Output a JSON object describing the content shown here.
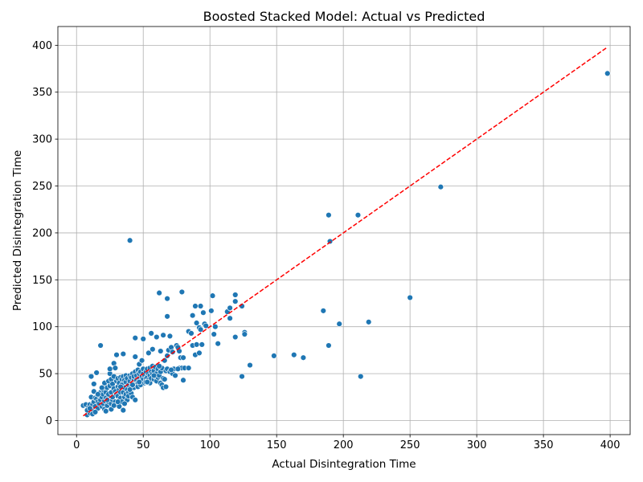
{
  "chart_data": {
    "type": "scatter",
    "title": "Boosted Stacked Model: Actual vs Predicted",
    "xlabel": "Actual Disintegration Time",
    "ylabel": "Predicted Disintegration Time",
    "xlim": [
      -14,
      415
    ],
    "ylim": [
      -15,
      420
    ],
    "xticks": [
      0,
      50,
      100,
      150,
      200,
      250,
      300,
      350,
      400
    ],
    "yticks": [
      0,
      50,
      100,
      150,
      200,
      250,
      300,
      350,
      400
    ],
    "grid": true,
    "legend": null,
    "colors": {
      "points": "#1f77b4",
      "point_edge": "#ffffff",
      "reference_line": "#ff0000",
      "grid": "#b0b0b0",
      "frame": "#000000"
    },
    "reference_line": {
      "style": "dashed",
      "x": [
        5,
        398
      ],
      "y": [
        5,
        398
      ]
    },
    "series": [
      {
        "x": [
          5,
          7,
          8,
          9,
          9,
          10,
          10,
          11,
          11,
          11,
          12,
          12,
          13,
          13,
          13,
          14,
          14,
          15,
          15,
          16,
          16,
          17,
          17,
          18,
          18,
          18,
          19,
          19,
          20,
          20,
          20,
          21,
          21,
          21,
          22,
          22,
          22,
          23,
          23,
          24,
          24,
          24,
          25,
          25,
          25,
          26,
          26,
          26,
          27,
          27,
          27,
          28,
          28,
          28,
          29,
          29,
          29,
          30,
          30,
          30,
          31,
          31,
          31,
          32,
          32,
          32,
          33,
          33,
          33,
          34,
          34,
          34,
          35,
          35,
          35,
          35,
          36,
          36,
          36,
          37,
          37,
          37,
          38,
          38,
          38,
          39,
          39,
          39,
          40,
          40,
          40,
          41,
          41,
          41,
          42,
          42,
          42,
          43,
          43,
          43,
          44,
          44,
          44,
          44,
          45,
          45,
          45,
          46,
          46,
          46,
          47,
          47,
          47,
          48,
          48,
          48,
          49,
          49,
          50,
          50,
          50,
          50,
          51,
          51,
          52,
          52,
          52,
          53,
          53,
          54,
          54,
          54,
          55,
          55,
          55,
          56,
          56,
          56,
          57,
          57,
          57,
          58,
          58,
          59,
          59,
          60,
          60,
          60,
          61,
          61,
          62,
          62,
          63,
          63,
          63,
          64,
          64,
          65,
          65,
          65,
          66,
          66,
          67,
          68,
          68,
          68,
          68,
          69,
          70,
          70,
          71,
          72,
          72,
          73,
          74,
          75,
          76,
          77,
          77,
          78,
          79,
          79,
          80,
          80,
          81,
          84,
          84,
          86,
          87,
          87,
          89,
          89,
          90,
          90,
          92,
          92,
          93,
          93,
          94,
          95,
          96,
          97,
          101,
          102,
          103,
          104,
          106,
          113,
          115,
          115,
          119,
          119,
          119,
          124,
          124,
          126,
          126,
          130,
          148,
          163,
          170,
          185,
          189,
          189,
          190,
          197,
          211,
          213,
          219,
          250,
          273,
          398,
          8,
          10,
          14,
          16,
          19,
          23,
          26,
          28,
          31,
          33,
          36,
          40,
          42,
          47,
          53,
          58,
          62,
          67,
          71,
          76
        ],
        "y": [
          16,
          17,
          6,
          10,
          14,
          8,
          17,
          12,
          25,
          47,
          17,
          7,
          20,
          31,
          39,
          24,
          15,
          23,
          51,
          20,
          13,
          27,
          18,
          30,
          22,
          80,
          15,
          25,
          18,
          28,
          33,
          12,
          21,
          40,
          30,
          10,
          24,
          16,
          35,
          20,
          42,
          28,
          50,
          55,
          37,
          18,
          30,
          44,
          22,
          25,
          39,
          61,
          34,
          47,
          56,
          20,
          31,
          28,
          42,
          70,
          45,
          26,
          36,
          15,
          33,
          40,
          24,
          46,
          30,
          38,
          20,
          44,
          71,
          11,
          30,
          47,
          25,
          35,
          43,
          28,
          41,
          48,
          22,
          33,
          45,
          38,
          30,
          26,
          192,
          42,
          48,
          36,
          29,
          46,
          40,
          25,
          50,
          44,
          35,
          47,
          22,
          68,
          88,
          52,
          38,
          48,
          43,
          40,
          54,
          36,
          45,
          50,
          60,
          42,
          38,
          52,
          47,
          64,
          44,
          87,
          50,
          55,
          40,
          48,
          45,
          52,
          41,
          46,
          55,
          50,
          43,
          72,
          48,
          40,
          56,
          45,
          93,
          52,
          50,
          58,
          76,
          44,
          53,
          47,
          57,
          89,
          50,
          42,
          55,
          46,
          136,
          48,
          74,
          40,
          52,
          38,
          56,
          35,
          91,
          45,
          44,
          64,
          53,
          130,
          111,
          55,
          69,
          75,
          90,
          52,
          78,
          50,
          73,
          55,
          48,
          80,
          78,
          56,
          74,
          67,
          137,
          56,
          43,
          67,
          56,
          56,
          95,
          93,
          80,
          112,
          122,
          70,
          81,
          104,
          72,
          99,
          122,
          97,
          81,
          115,
          103,
          101,
          117,
          133,
          92,
          100,
          82,
          116,
          109,
          120,
          127,
          134,
          89,
          122,
          47,
          94,
          92,
          59,
          69,
          70,
          67,
          117,
          219,
          80,
          191,
          103,
          219,
          47,
          105,
          131,
          249,
          370,
          11,
          13,
          9,
          28,
          35,
          22,
          12,
          16,
          20,
          36,
          18,
          33,
          38,
          41,
          41,
          48,
          58,
          36,
          54,
          55
        ]
      }
    ]
  }
}
